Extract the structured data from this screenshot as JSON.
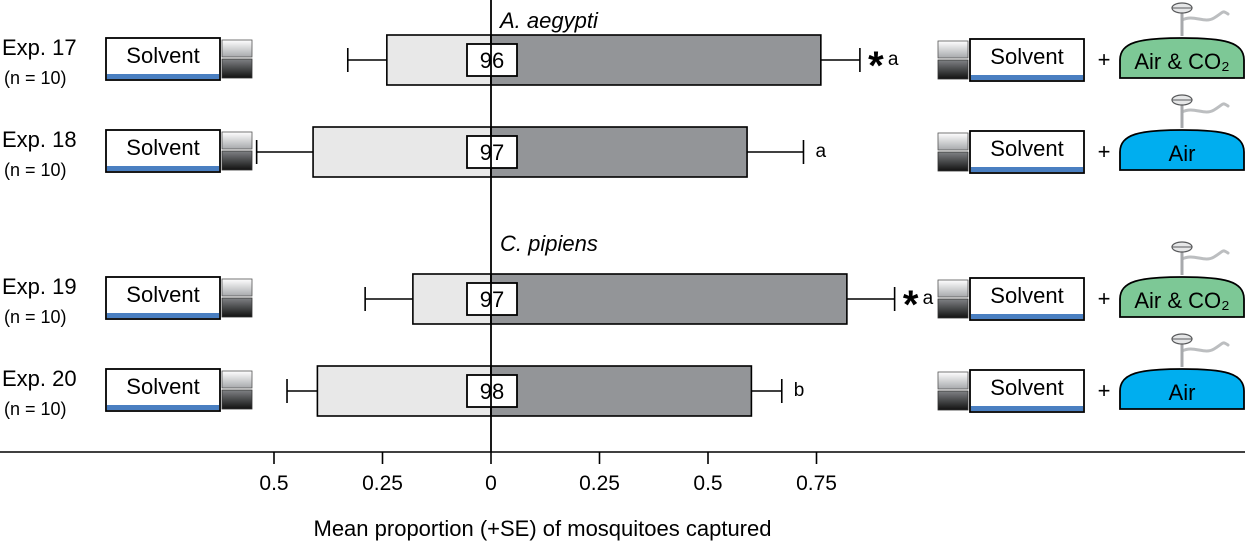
{
  "chart_data": {
    "type": "bar",
    "orientation": "horizontal-diverging",
    "xlabel": "Mean proportion (+SE) of mosquitoes captured",
    "xlim": [
      -0.5,
      0.75
    ],
    "ticks": [
      {
        "value": -0.5,
        "label": "0.5"
      },
      {
        "value": -0.25,
        "label": "0.25"
      },
      {
        "value": 0,
        "label": "0"
      },
      {
        "value": 0.25,
        "label": "0.25"
      },
      {
        "value": 0.5,
        "label": "0.5"
      },
      {
        "value": 0.75,
        "label": "0.75"
      }
    ],
    "groups": [
      {
        "title": "A. aegypti",
        "experiments": [
          0,
          1
        ]
      },
      {
        "title": "C. pipiens",
        "experiments": [
          2,
          3
        ]
      }
    ],
    "series": [
      {
        "side": "left",
        "color": "#e8e8e8"
      },
      {
        "side": "right",
        "color": "#939598"
      }
    ],
    "experiments": [
      {
        "label": "Exp. 17",
        "n": "(n = 10)",
        "left": 0.24,
        "left_se": 0.09,
        "right": 0.76,
        "right_se": 0.09,
        "responders": "96",
        "sig": "*",
        "letter": "a",
        "treatment": "Air & CO₂"
      },
      {
        "label": "Exp. 18",
        "n": "(n = 10)",
        "left": 0.41,
        "left_se": 0.13,
        "right": 0.59,
        "right_se": 0.13,
        "responders": "97",
        "sig": "",
        "letter": "a",
        "treatment": "Air"
      },
      {
        "label": "Exp. 19",
        "n": "(n = 10)",
        "left": 0.18,
        "left_se": 0.11,
        "right": 0.82,
        "right_se": 0.11,
        "responders": "97",
        "sig": "*",
        "letter": "a",
        "treatment": "Air & CO₂"
      },
      {
        "label": "Exp. 20",
        "n": "(n = 10)",
        "left": 0.4,
        "left_se": 0.07,
        "right": 0.6,
        "right_se": 0.07,
        "responders": "98",
        "sig": "",
        "letter": "b",
        "treatment": "Air"
      }
    ]
  },
  "trap": {
    "solvent_label": "Solvent",
    "plus": "+",
    "air_color": "#00aeef",
    "co2_color": "#7dc896",
    "stripe_color": "#4a7fc1"
  }
}
